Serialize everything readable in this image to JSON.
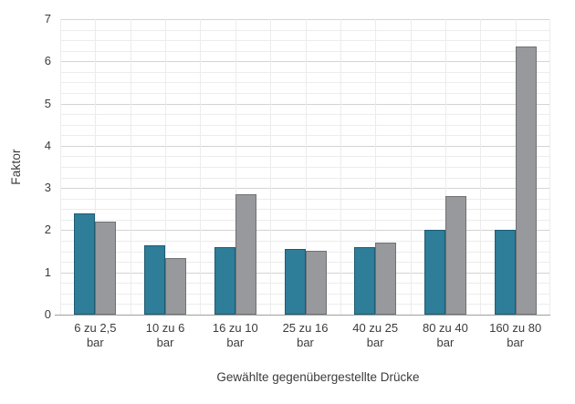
{
  "chart_data": {
    "type": "bar",
    "title": "",
    "xlabel": "Gewählte gegenübergestellte Drücke",
    "ylabel": "Faktor",
    "categories": [
      "6 zu 2,5",
      "10 zu 6",
      "16 zu 10",
      "25 zu 16",
      "40 zu 25",
      "80 zu 40",
      "160 zu 80"
    ],
    "category_unit": "bar",
    "ylim": [
      0,
      7
    ],
    "y_major_step": 1,
    "y_minor_step": 0.25,
    "x_minor_divisions_per_category": 2,
    "y_tick_labels": [
      "0",
      "1",
      "2",
      "3",
      "4",
      "5",
      "6",
      "7"
    ],
    "grid": "on",
    "legend": "none",
    "series": [
      {
        "name": "teal-series",
        "color": "#2E7D99",
        "border_color": "#1E5B72",
        "values": [
          2.4,
          1.65,
          1.6,
          1.55,
          1.6,
          2.0,
          2.0
        ]
      },
      {
        "name": "gray-series",
        "color": "#97999C",
        "border_color": "#6F7174",
        "values": [
          2.2,
          1.33,
          2.85,
          1.52,
          1.7,
          2.8,
          6.35
        ]
      }
    ],
    "colors": {
      "minor_grid": "#ececec",
      "major_grid": "#d4d4d4",
      "axis_line": "#9f9f9f",
      "text": "#3c3c3c"
    }
  }
}
